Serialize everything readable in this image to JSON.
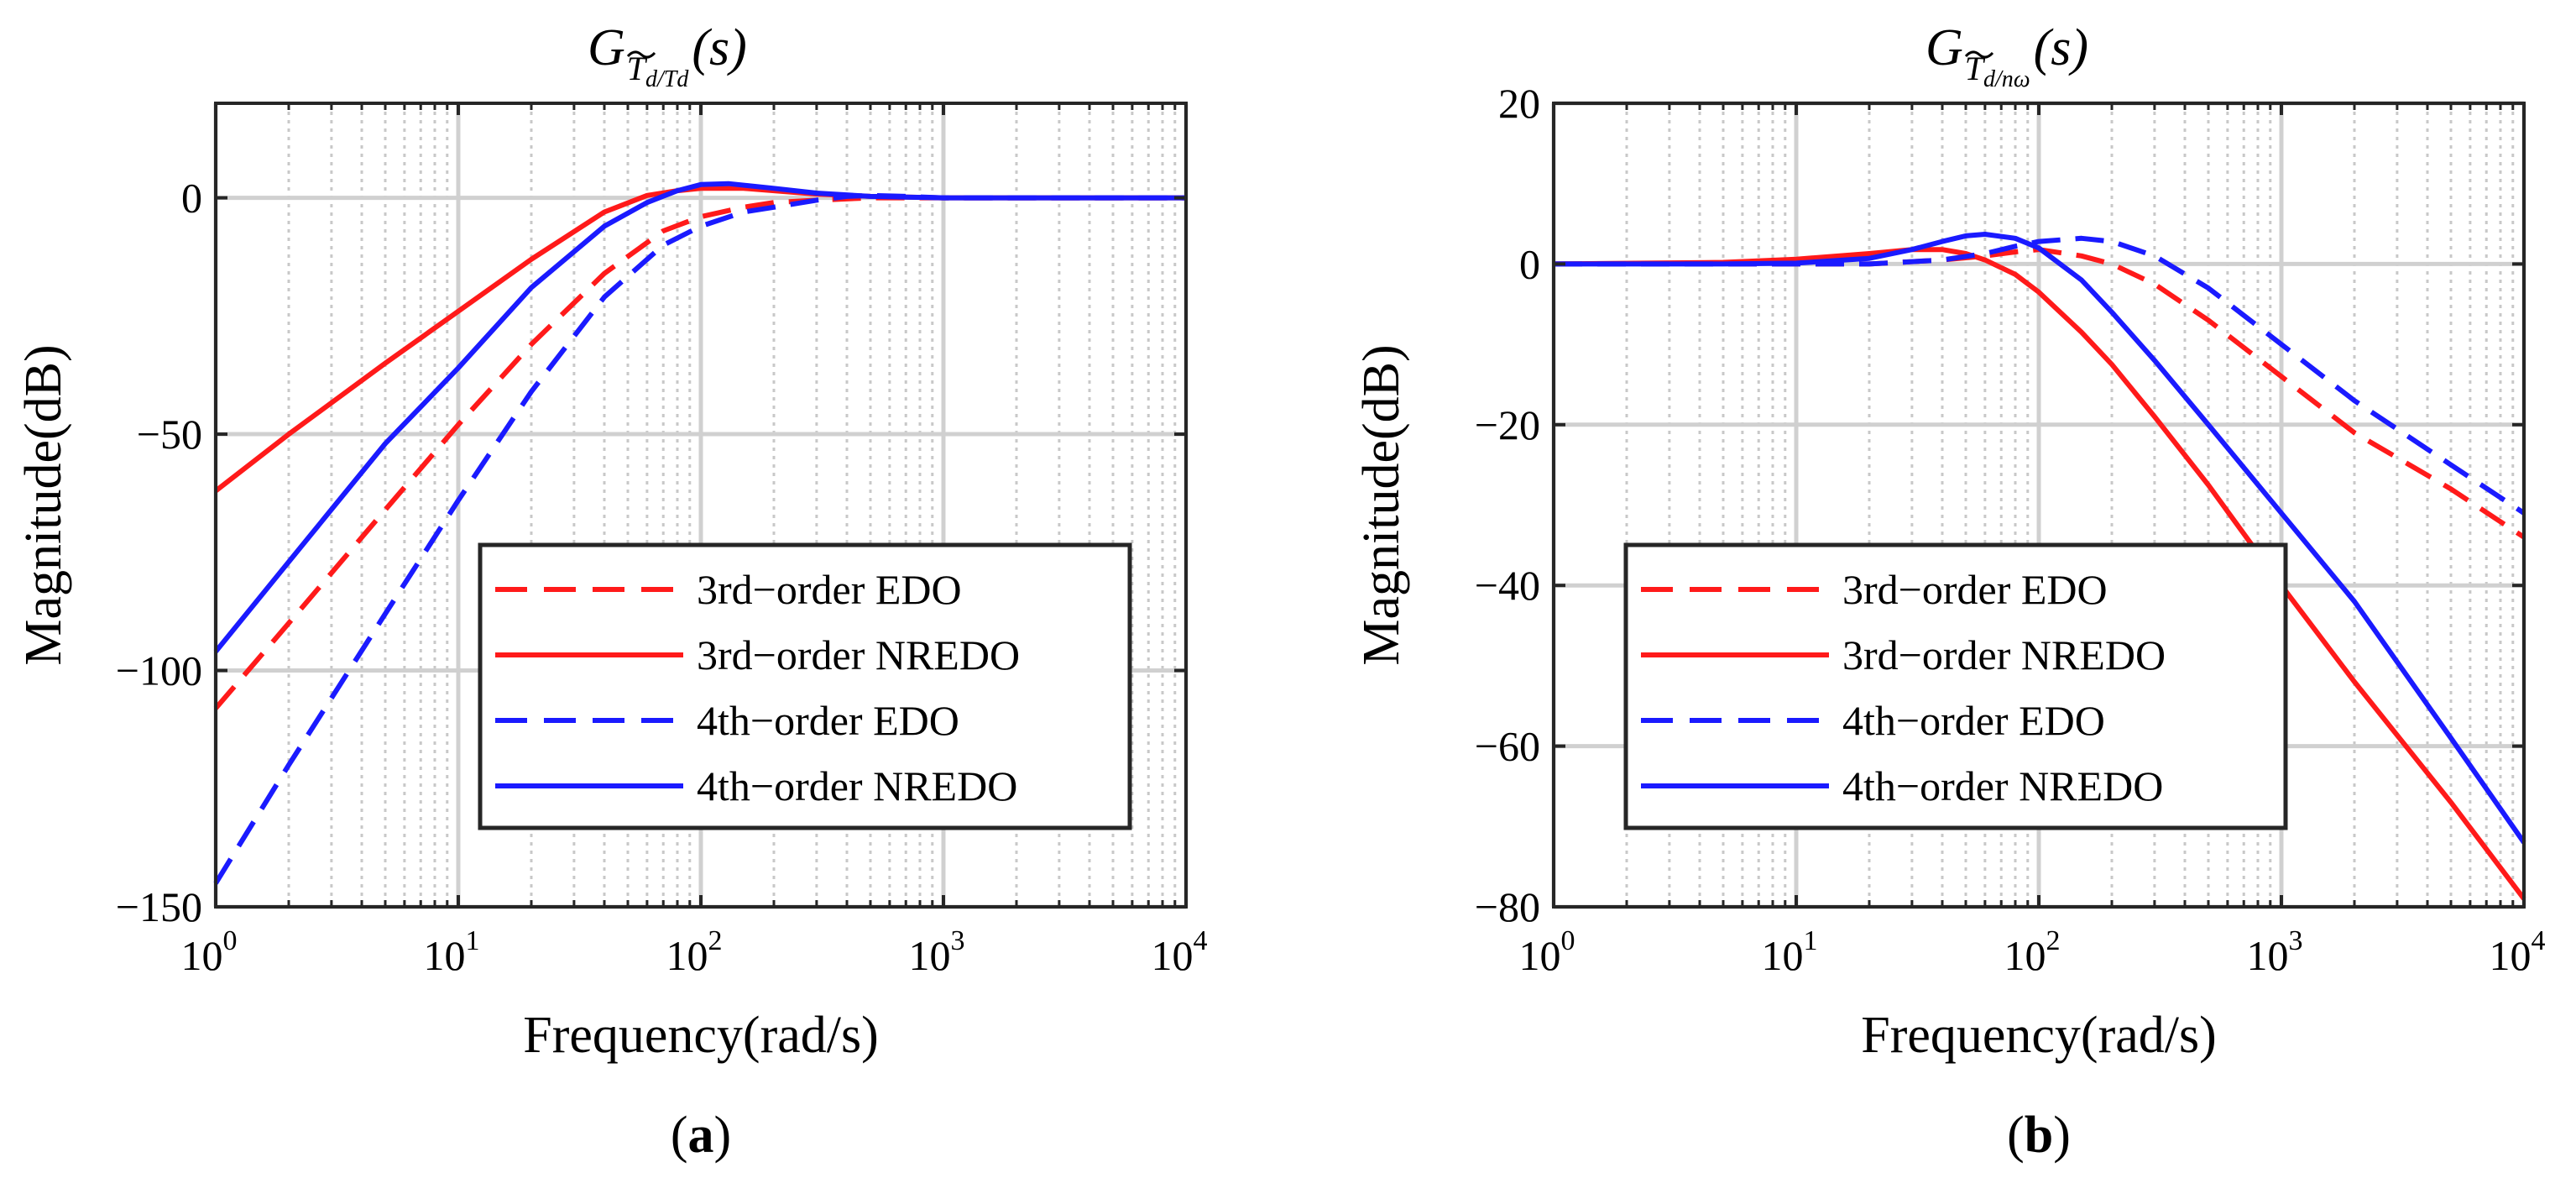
{
  "colors": {
    "red": "#ff1a1a",
    "blue": "#1a1aff",
    "axis": "#262626",
    "grid_major": "#d0d0d0",
    "grid_minor": "#c8c8c8"
  },
  "legend_items": [
    {
      "label": "3rd−order EDO",
      "color": "red",
      "style": "dashed"
    },
    {
      "label": "3rd−order NREDO",
      "color": "red",
      "style": "solid"
    },
    {
      "label": "4th−order EDO",
      "color": "blue",
      "style": "dashed"
    },
    {
      "label": "4th−order NREDO",
      "color": "blue",
      "style": "solid"
    }
  ],
  "chart_data": [
    {
      "type": "line",
      "panel_label": "a",
      "title": {
        "base": "G",
        "sub_top": "T",
        "sub_bottom": "d/T",
        "sub_tail": "d",
        "tail": "(s)"
      },
      "title_text": "G_{T~d/Td}(s)",
      "xlabel": "Frequency(rad/s)",
      "ylabel": "Magnitude(dB)",
      "xscale": "log",
      "xlim": [
        1,
        10000
      ],
      "ylim": [
        -150,
        20
      ],
      "xticks": [
        1,
        10,
        100,
        1000,
        10000
      ],
      "xtick_labels": [
        {
          "base": "10",
          "exp": "0"
        },
        {
          "base": "10",
          "exp": "1"
        },
        {
          "base": "10",
          "exp": "2"
        },
        {
          "base": "10",
          "exp": "3"
        },
        {
          "base": "10",
          "exp": "4"
        }
      ],
      "yticks": [
        -150,
        -100,
        -50,
        0
      ],
      "ytick_labels": [
        "−150",
        "−100",
        "−50",
        "0"
      ],
      "grid": true,
      "legend_position": "lower-right",
      "series": [
        {
          "name": "3rd−order EDO",
          "x": [
            1,
            2,
            5,
            10,
            20,
            40,
            70,
            100,
            150,
            200,
            300,
            500,
            1000,
            10000
          ],
          "y": [
            -108,
            -90,
            -66,
            -48,
            -31,
            -16,
            -7,
            -4,
            -2,
            -1,
            -0.5,
            0,
            0,
            0
          ]
        },
        {
          "name": "3rd−order NREDO",
          "x": [
            1,
            2,
            5,
            10,
            20,
            40,
            60,
            80,
            100,
            150,
            200,
            300,
            500,
            1000,
            10000
          ],
          "y": [
            -62,
            -50,
            -35,
            -24,
            -13,
            -3,
            0.5,
            1.5,
            2,
            2,
            1.5,
            0.8,
            0.3,
            0,
            0
          ]
        },
        {
          "name": "4th−order EDO",
          "x": [
            1,
            2,
            5,
            10,
            20,
            40,
            70,
            100,
            150,
            200,
            300,
            400,
            500,
            700,
            1000,
            10000
          ],
          "y": [
            -145,
            -120,
            -88,
            -64,
            -41,
            -21,
            -10,
            -6,
            -3,
            -2,
            -0.5,
            0.3,
            0.5,
            0.3,
            0,
            0
          ]
        },
        {
          "name": "4th−order NREDO",
          "x": [
            1,
            2,
            5,
            10,
            20,
            40,
            60,
            80,
            100,
            130,
            200,
            300,
            500,
            1000,
            10000
          ],
          "y": [
            -96,
            -77,
            -52,
            -36,
            -19,
            -6,
            -1,
            1.5,
            2.8,
            3,
            2,
            1,
            0.3,
            0,
            0
          ]
        }
      ]
    },
    {
      "type": "line",
      "panel_label": "b",
      "title": {
        "base": "G",
        "sub_top": "T",
        "sub_bottom": "d/n",
        "sub_tail": "ω",
        "tail": "(s)"
      },
      "title_text": "G_{T~d/nω}(s)",
      "xlabel": "Frequency(rad/s)",
      "ylabel": "Magnitude(dB)",
      "xscale": "log",
      "xlim": [
        1,
        10000
      ],
      "ylim": [
        -80,
        20
      ],
      "xticks": [
        1,
        10,
        100,
        1000,
        10000
      ],
      "xtick_labels": [
        {
          "base": "10",
          "exp": "0"
        },
        {
          "base": "10",
          "exp": "1"
        },
        {
          "base": "10",
          "exp": "2"
        },
        {
          "base": "10",
          "exp": "3"
        },
        {
          "base": "10",
          "exp": "4"
        }
      ],
      "yticks": [
        -80,
        -60,
        -40,
        -20,
        0,
        20
      ],
      "ytick_labels": [
        "−80",
        "−60",
        "−40",
        "−20",
        "0",
        "20"
      ],
      "grid": true,
      "legend_position": "lower-left",
      "series": [
        {
          "name": "3rd−order EDO",
          "x": [
            1,
            5,
            10,
            20,
            40,
            60,
            80,
            100,
            150,
            200,
            300,
            500,
            1000,
            2000,
            5000,
            10000
          ],
          "y": [
            0,
            0,
            0,
            0,
            0.5,
            1,
            1.5,
            1.8,
            1,
            0,
            -2.5,
            -7,
            -14,
            -21,
            -28,
            -34
          ]
        },
        {
          "name": "3rd−order NREDO",
          "x": [
            1,
            5,
            10,
            20,
            30,
            40,
            50,
            60,
            80,
            100,
            150,
            200,
            300,
            500,
            1000,
            2000,
            5000,
            10000
          ],
          "y": [
            0,
            0.2,
            0.6,
            1.3,
            1.8,
            1.8,
            1.3,
            0.5,
            -1.3,
            -3.5,
            -8.5,
            -12.5,
            -19,
            -27.5,
            -40,
            -52,
            -67,
            -79
          ]
        },
        {
          "name": "4th−order EDO",
          "x": [
            1,
            5,
            10,
            20,
            40,
            60,
            80,
            100,
            150,
            200,
            300,
            500,
            1000,
            2000,
            5000,
            10000
          ],
          "y": [
            0,
            0,
            0,
            0,
            0.5,
            1.3,
            2.2,
            2.8,
            3.2,
            2.8,
            1,
            -3,
            -10,
            -17,
            -25,
            -31
          ]
        },
        {
          "name": "4th−order NREDO",
          "x": [
            1,
            5,
            10,
            20,
            30,
            40,
            50,
            60,
            80,
            100,
            150,
            200,
            300,
            500,
            1000,
            2000,
            5000,
            10000
          ],
          "y": [
            0,
            0,
            0.1,
            0.7,
            1.8,
            2.8,
            3.5,
            3.7,
            3.2,
            2,
            -2,
            -6,
            -12,
            -20,
            -31,
            -42,
            -59,
            -72
          ]
        }
      ]
    }
  ]
}
